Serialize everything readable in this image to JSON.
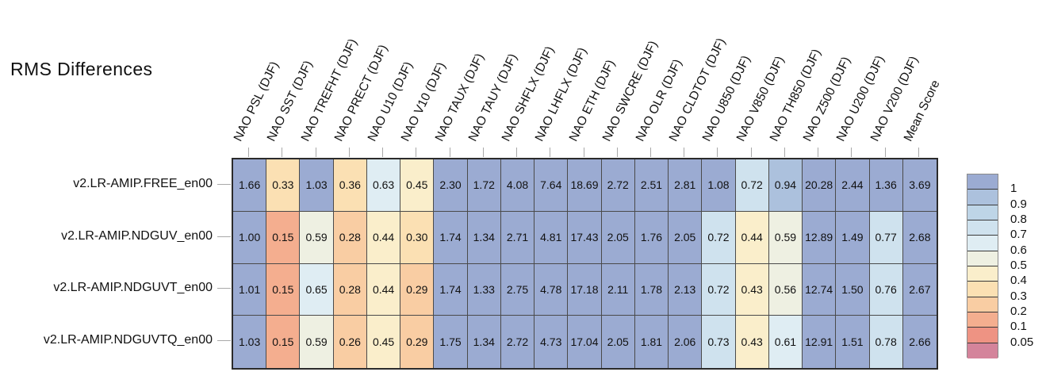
{
  "title": "RMS Differences",
  "chart_data": {
    "type": "heatmap",
    "title": "RMS Differences",
    "columns": [
      "NAO PSL (DJF)",
      "NAO SST (DJF)",
      "NAO TREFHT (DJF)",
      "NAO PRECT (DJF)",
      "NAO U10 (DJF)",
      "NAO V10 (DJF)",
      "NAO TAUX (DJF)",
      "NAO TAUY (DJF)",
      "NAO SHFLX (DJF)",
      "NAO LHFLX (DJF)",
      "NAO ETH (DJF)",
      "NAO SWCRE (DJF)",
      "NAO OLR (DJF)",
      "NAO CLDTOT (DJF)",
      "NAO U850 (DJF)",
      "NAO V850 (DJF)",
      "NAO TH850 (DJF)",
      "NAO Z500 (DJF)",
      "NAO U200 (DJF)",
      "NAO V200 (DJF)",
      "Mean Score"
    ],
    "rows": [
      "v2.LR-AMIP.FREE_en00",
      "v2.LR-AMIP.NDGUV_en00",
      "v2.LR-AMIP.NDGUVT_en00",
      "v2.LR-AMIP.NDGUVTQ_en00"
    ],
    "values": [
      [
        "1.66",
        "0.33",
        "1.03",
        "0.36",
        "0.63",
        "0.45",
        "2.30",
        "1.72",
        "4.08",
        "7.64",
        "18.69",
        "2.72",
        "2.51",
        "2.81",
        "1.08",
        "0.72",
        "0.94",
        "20.28",
        "2.44",
        "1.36",
        "3.69"
      ],
      [
        "1.00",
        "0.15",
        "0.59",
        "0.28",
        "0.44",
        "0.30",
        "1.74",
        "1.34",
        "2.71",
        "4.81",
        "17.43",
        "2.05",
        "1.76",
        "2.05",
        "0.72",
        "0.44",
        "0.59",
        "12.89",
        "1.49",
        "0.77",
        "2.68"
      ],
      [
        "1.01",
        "0.15",
        "0.65",
        "0.28",
        "0.44",
        "0.29",
        "1.74",
        "1.33",
        "2.75",
        "4.78",
        "17.18",
        "2.11",
        "1.78",
        "2.13",
        "0.72",
        "0.43",
        "0.56",
        "12.74",
        "1.50",
        "0.76",
        "2.67"
      ],
      [
        "1.03",
        "0.15",
        "0.59",
        "0.26",
        "0.45",
        "0.29",
        "1.75",
        "1.34",
        "2.72",
        "4.73",
        "17.04",
        "2.05",
        "1.81",
        "2.06",
        "0.73",
        "0.43",
        "0.61",
        "12.91",
        "1.51",
        "0.78",
        "2.66"
      ]
    ],
    "legend": {
      "position": "right",
      "tick_labels": [
        "1",
        "0.9",
        "0.8",
        "0.7",
        "0.6",
        "0.5",
        "0.4",
        "0.3",
        "0.2",
        "0.1",
        "0.05"
      ],
      "thresholds": [
        1,
        0.9,
        0.8,
        0.7,
        0.6,
        0.5,
        0.4,
        0.3,
        0.2,
        0.1,
        0.05
      ],
      "band_colors": [
        "#9BABD2",
        "#ACC1DD",
        "#BED5E7",
        "#CFE2EE",
        "#DFEDF3",
        "#EEF0E2",
        "#FAEECB",
        "#FBE0B3",
        "#F9CDA3",
        "#F4AE8F",
        "#EE9383",
        "#D4849B"
      ]
    },
    "colors": {
      "cell_text": "#111111",
      "grid_line": "#4a4a4a",
      "outer_border": "#2b2b2b",
      "tick": "#a9a9a9"
    }
  }
}
